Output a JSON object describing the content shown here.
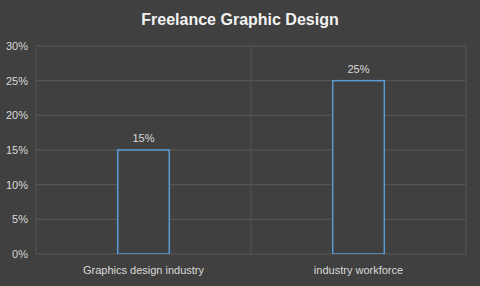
{
  "chart_data": {
    "type": "bar",
    "title": "Freelance Graphic Design",
    "categories": [
      "Graphics design industry",
      "industry workforce"
    ],
    "values": [
      15,
      25
    ],
    "value_labels": [
      "15%",
      "25%"
    ],
    "data_labels": true,
    "color": "#5b9bd5",
    "ylim": [
      0,
      30
    ],
    "yticks": [
      {
        "value": 0,
        "label": "0%"
      },
      {
        "value": 5,
        "label": "5%"
      },
      {
        "value": 10,
        "label": "10%"
      },
      {
        "value": 15,
        "label": "15%"
      },
      {
        "value": 20,
        "label": "20%"
      },
      {
        "value": 25,
        "label": "25%"
      },
      {
        "value": 30,
        "label": "30%"
      }
    ],
    "grid": true
  }
}
